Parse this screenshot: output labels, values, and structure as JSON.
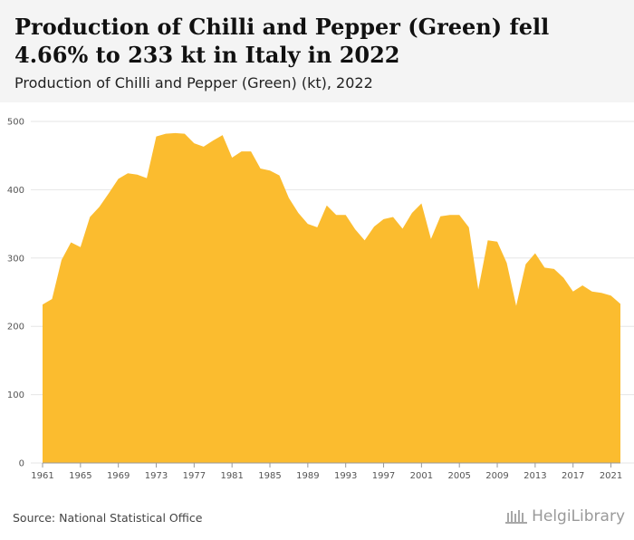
{
  "title": "Production of Chilli and Pepper (Green) fell 4.66% to 233 kt in Italy in 2022",
  "subtitle": "Production of Chilli and Pepper (Green) (kt), 2022",
  "source": "Source: National Statistical Office",
  "logo_text": "HelgiLibrary",
  "colors": {
    "area": "#FBBC2F",
    "grid": "#e6e6e6",
    "header_bg": "#f4f4f4"
  },
  "chart_data": {
    "type": "area",
    "title": "",
    "xlabel": "",
    "ylabel": "",
    "ylim": [
      0,
      500
    ],
    "yticks": [
      0,
      100,
      200,
      300,
      400,
      500
    ],
    "xticks": [
      1961,
      1965,
      1969,
      1973,
      1977,
      1981,
      1985,
      1989,
      1993,
      1997,
      2001,
      2005,
      2009,
      2013,
      2017,
      2021
    ],
    "grid": true,
    "series": [
      {
        "x": [
          1961,
          1962,
          1963,
          1964,
          1965,
          1966,
          1967,
          1968,
          1969,
          1970,
          1971,
          1972,
          1973,
          1974,
          1975,
          1976,
          1977,
          1978,
          1979,
          1980,
          1981,
          1982,
          1983,
          1984,
          1985,
          1986,
          1987,
          1988,
          1989,
          1990,
          1991,
          1992,
          1993,
          1994,
          1995,
          1996,
          1997,
          1998,
          1999,
          2000,
          2001,
          2002,
          2003,
          2004,
          2005,
          2006,
          2007,
          2008,
          2009,
          2010,
          2011,
          2012,
          2013,
          2014,
          2015,
          2016,
          2017,
          2018,
          2019,
          2020,
          2021,
          2022
        ],
        "values": [
          232,
          240,
          297,
          323,
          316,
          360,
          375,
          395,
          416,
          424,
          422,
          417,
          478,
          482,
          483,
          482,
          468,
          463,
          472,
          480,
          447,
          456,
          456,
          431,
          428,
          421,
          388,
          366,
          350,
          345,
          377,
          363,
          363,
          342,
          326,
          346,
          357,
          360,
          343,
          366,
          380,
          328,
          361,
          363,
          363,
          345,
          254,
          326,
          324,
          293,
          230,
          291,
          307,
          286,
          284,
          271,
          251,
          260,
          251,
          249,
          245,
          233
        ]
      }
    ]
  }
}
